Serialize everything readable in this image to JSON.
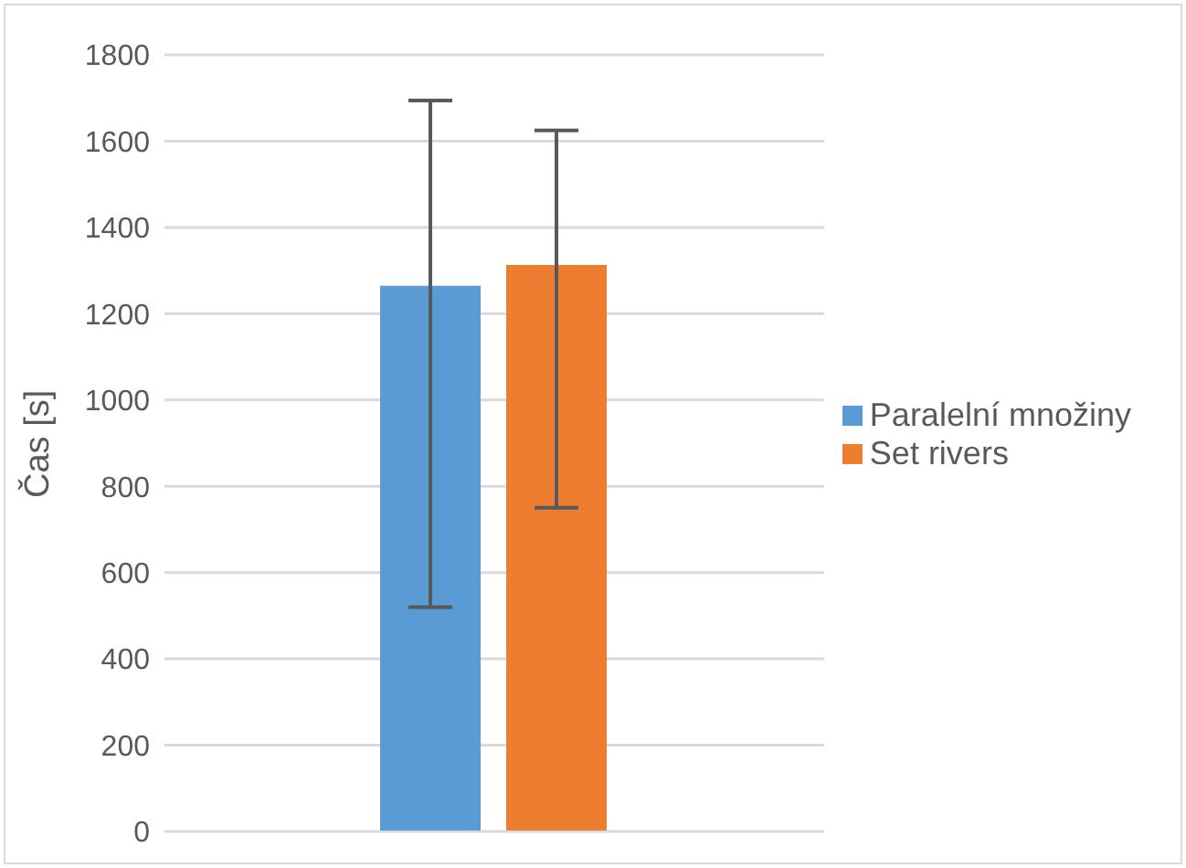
{
  "chart_data": {
    "type": "bar",
    "ylabel": "Čas [s]",
    "categories": [
      null
    ],
    "series": [
      {
        "name": "Paralelní množiny",
        "color": "#5b9bd5",
        "values": [
          1265
        ],
        "errors": [
          [
            520,
            1694
          ]
        ]
      },
      {
        "name": "Set rivers",
        "color": "#ed7d31",
        "values": [
          1313
        ],
        "errors": [
          [
            750,
            1625
          ]
        ]
      }
    ],
    "ylim": [
      0,
      1800
    ],
    "yticks": [
      0,
      200,
      400,
      600,
      800,
      1000,
      1200,
      1400,
      1600,
      1800
    ],
    "grid": "y",
    "legend": "right"
  }
}
